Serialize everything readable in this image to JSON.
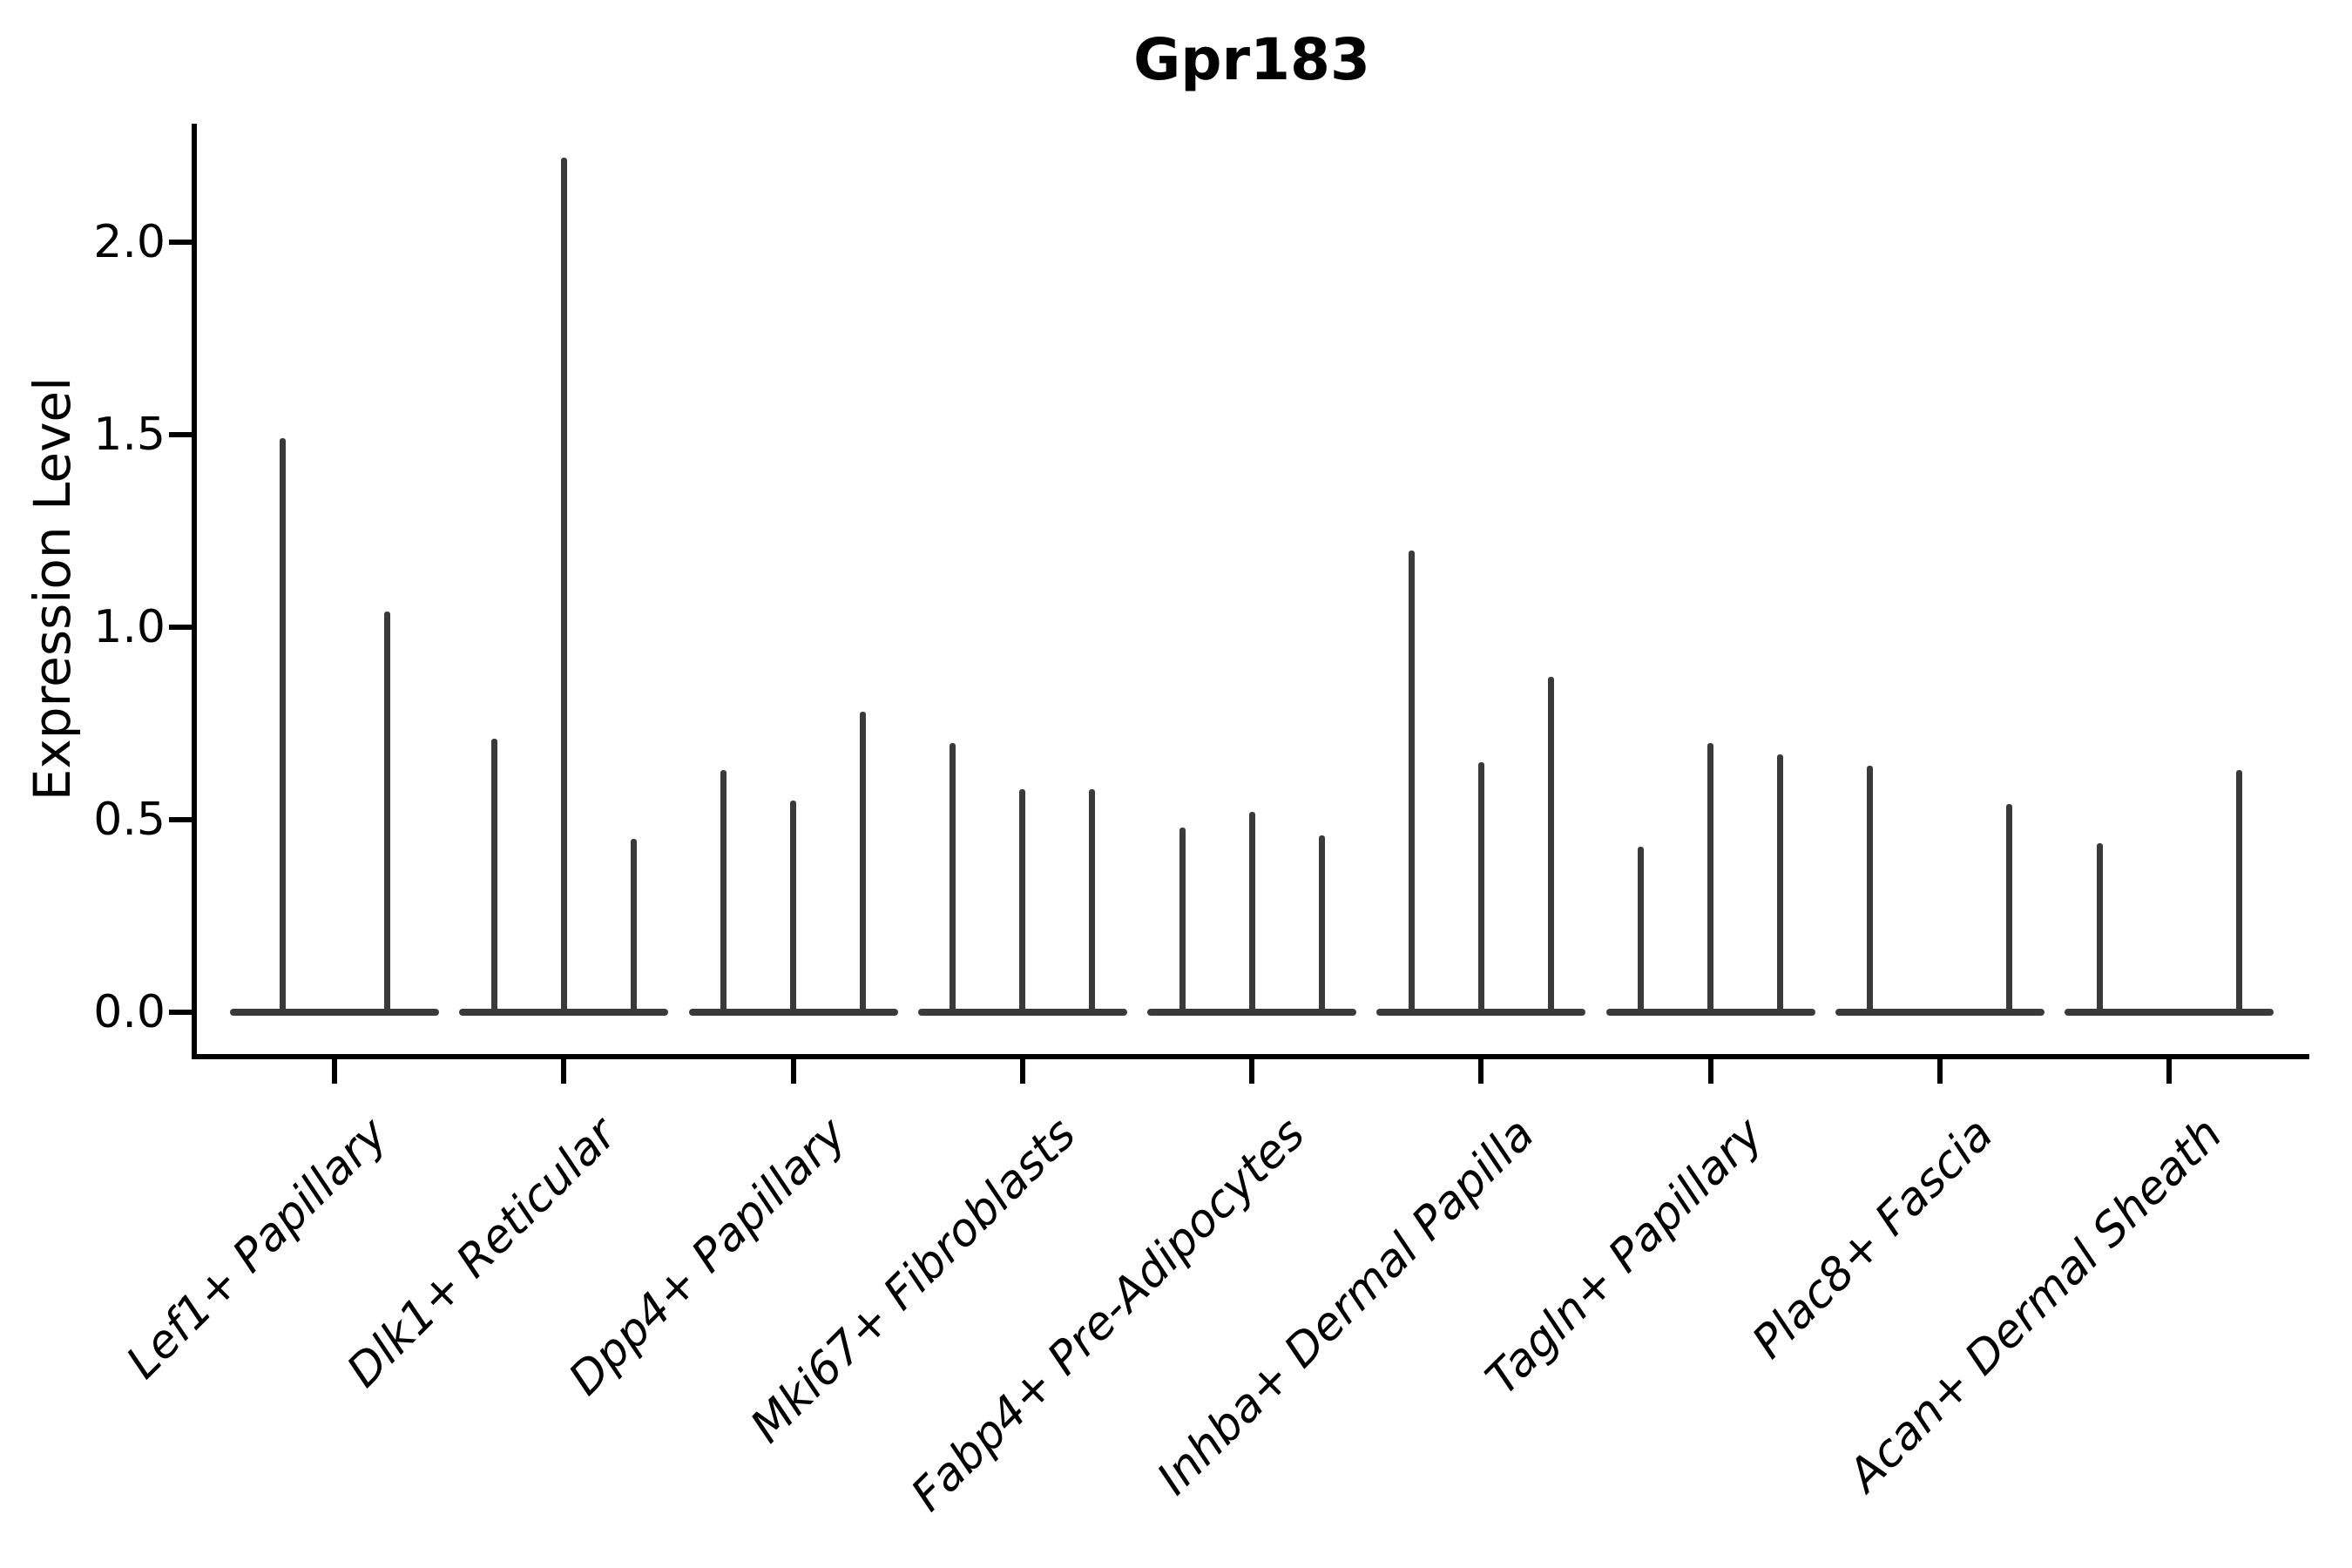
{
  "title": "Gpr183",
  "y_axis": {
    "label": "Expression Level",
    "tick_labels": [
      "0.0",
      "0.5",
      "1.0",
      "1.5",
      "2.0"
    ]
  },
  "chart_data": {
    "type": "violin",
    "title": "Gpr183",
    "ylabel": "Expression Level",
    "xlabel": "",
    "ylim": [
      -0.09,
      2.31
    ],
    "yticks": [
      0.0,
      0.5,
      1.0,
      1.5,
      2.0
    ],
    "grid": false,
    "legend": "none",
    "violin_color": "#3a3a3a",
    "axis_color": "#000000",
    "categories": [
      "Lef1+ Papillary",
      "Dlk1+ Reticular",
      "Dpp4+ Papillary",
      "Mki67+ Fibroblasts",
      "Fabp4+ Pre-Adipocytes",
      "Inhba+ Dermal Papilla",
      "Tagln+ Papillary",
      "Plac8+ Fascia",
      "Acan+ Dermal Sheath"
    ],
    "groups": [
      {
        "category": "Lef1+ Papillary",
        "violin_maxima": [
          1.49,
          1.04
        ]
      },
      {
        "category": "Dlk1+ Reticular",
        "violin_maxima": [
          0.71,
          2.22,
          0.45
        ]
      },
      {
        "category": "Dpp4+ Papillary",
        "violin_maxima": [
          0.63,
          0.55,
          0.78
        ]
      },
      {
        "category": "Mki67+ Fibroblasts",
        "violin_maxima": [
          0.7,
          0.58,
          0.58
        ]
      },
      {
        "category": "Fabp4+ Pre-Adipocytes",
        "violin_maxima": [
          0.48,
          0.52,
          0.46
        ]
      },
      {
        "category": "Inhba+ Dermal Papilla",
        "violin_maxima": [
          1.2,
          0.65,
          0.87
        ]
      },
      {
        "category": "Tagln+ Papillary",
        "violin_maxima": [
          0.43,
          0.7,
          0.67
        ]
      },
      {
        "category": "Plac8+ Fascia",
        "violin_maxima": [
          0.64,
          null,
          0.54
        ]
      },
      {
        "category": "Acan+ Dermal Sheath",
        "violin_maxima": [
          0.44,
          null,
          0.63
        ]
      }
    ]
  }
}
